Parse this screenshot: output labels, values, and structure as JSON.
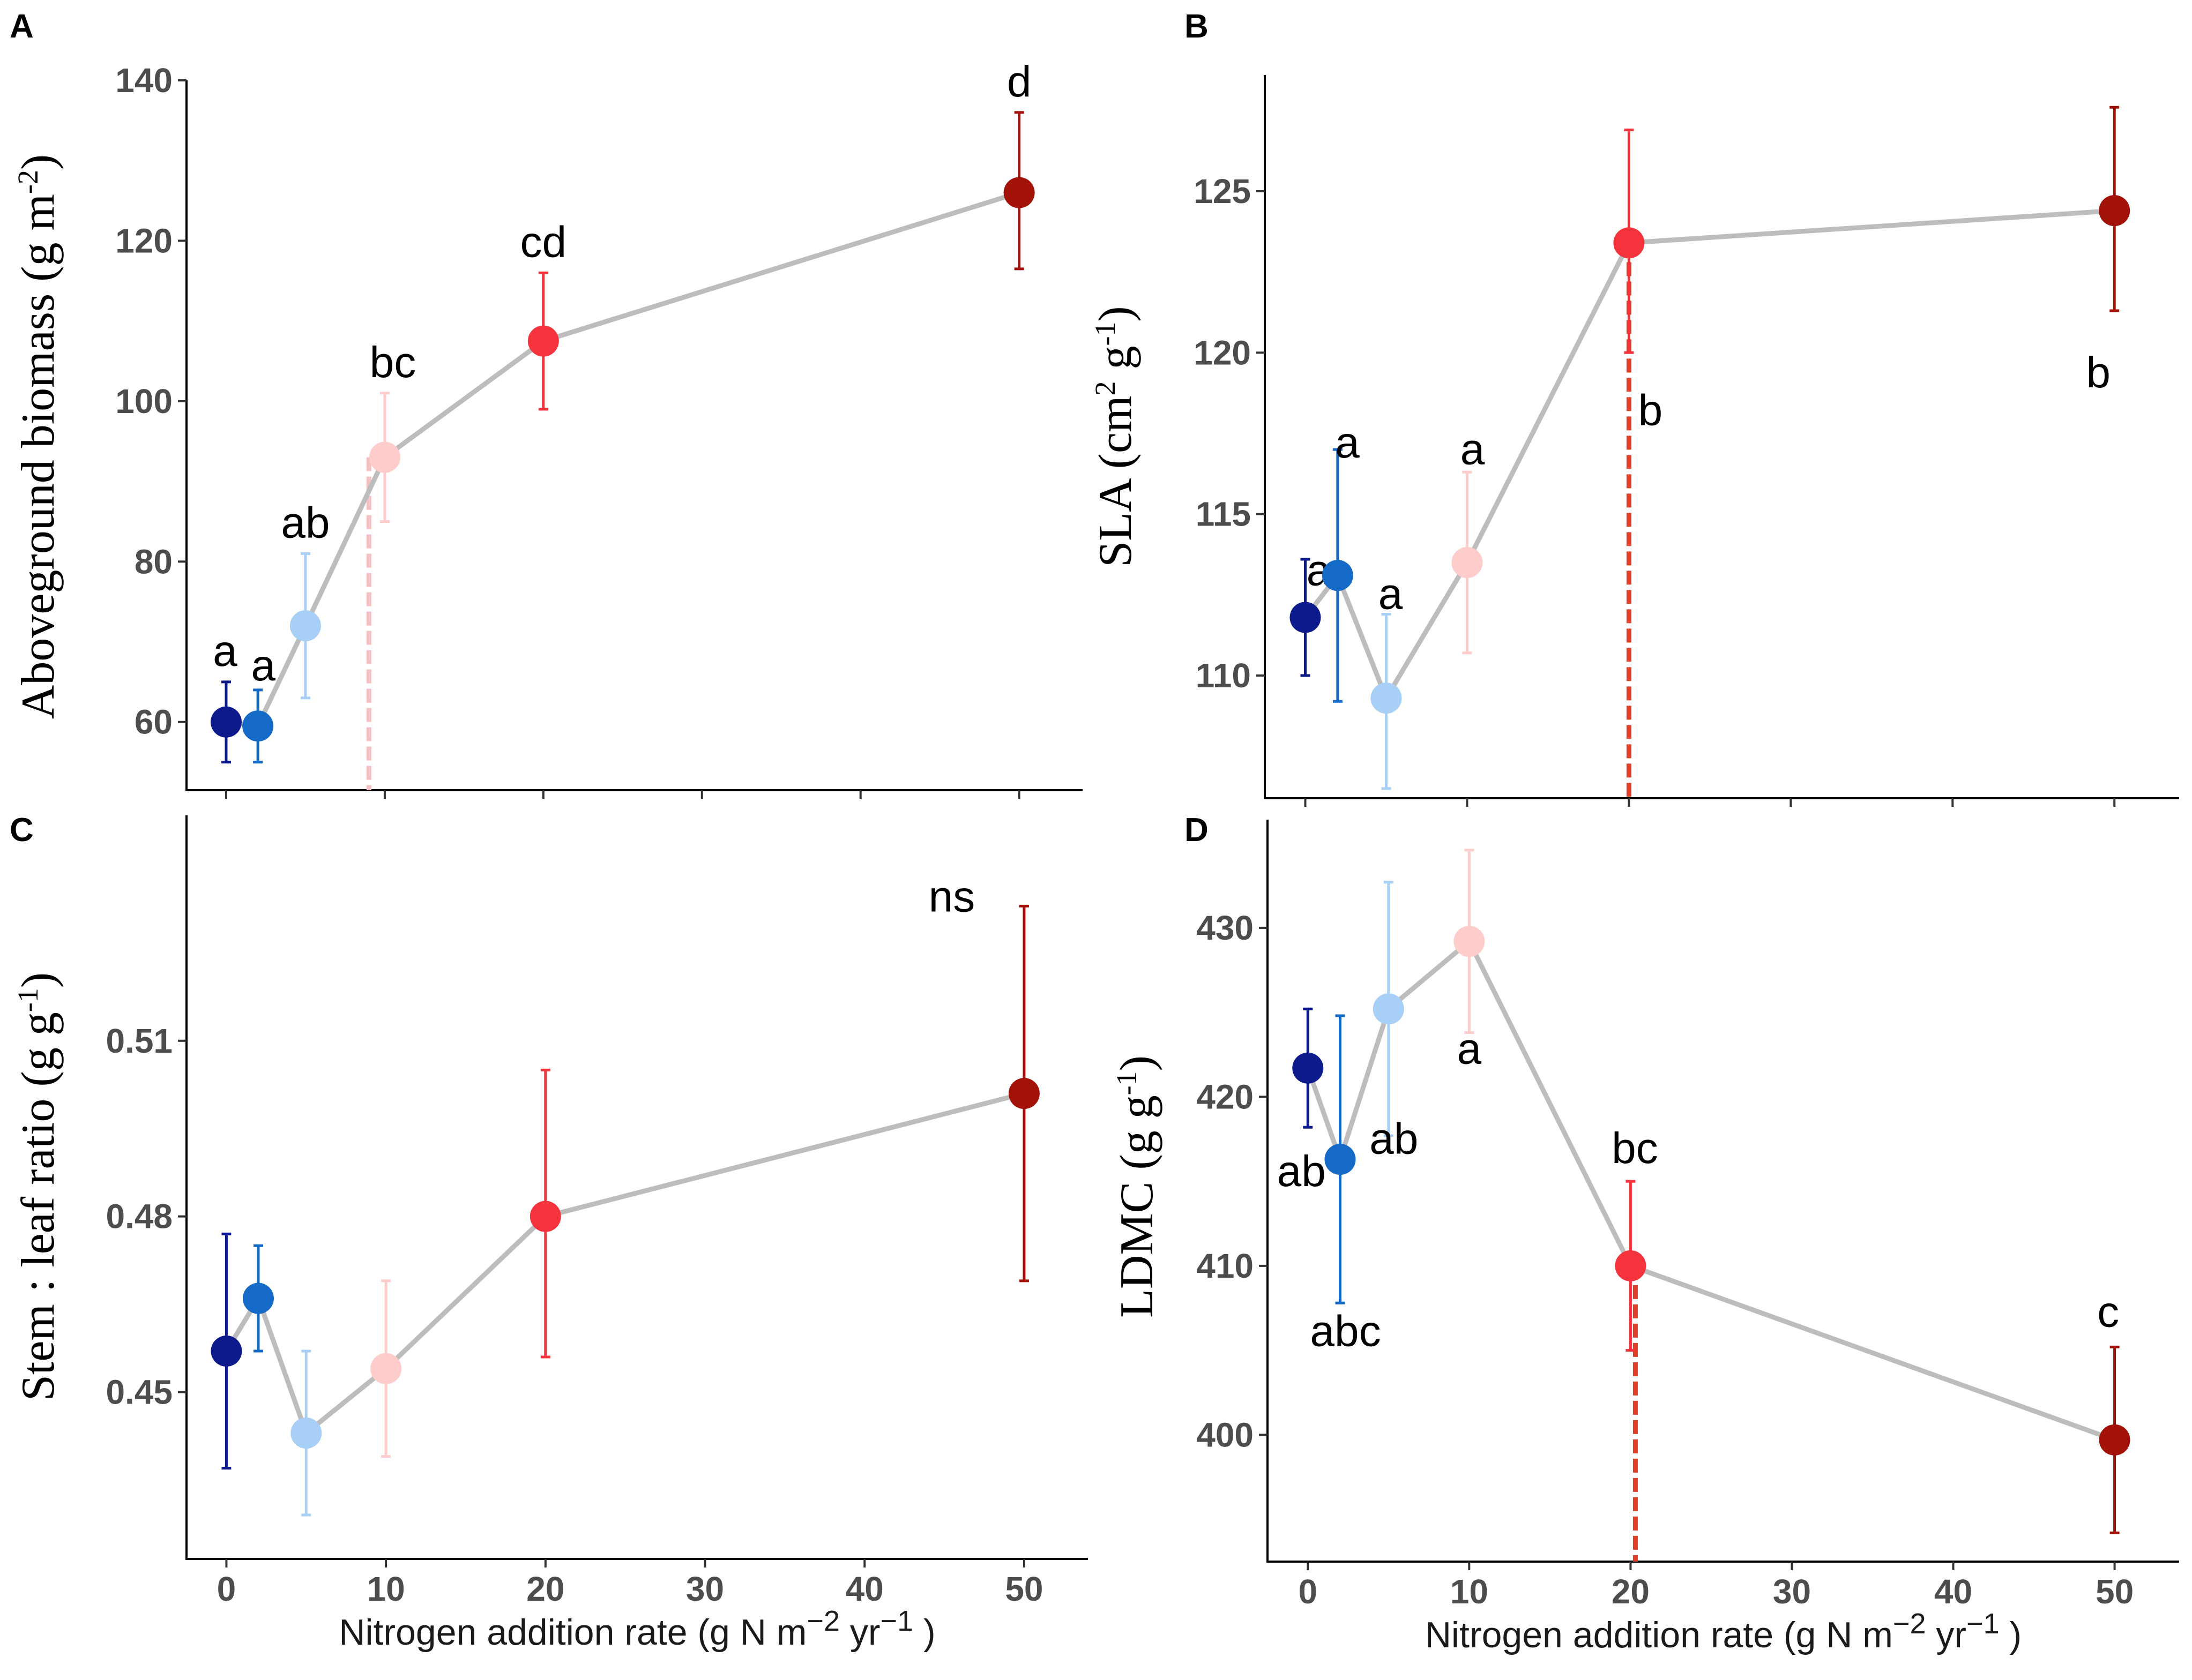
{
  "figure": {
    "x_axis_label": "Nitrogen addition rate (g N m",
    "x_axis_label_sup1": "−2",
    "x_axis_label_mid": "  yr",
    "x_axis_label_sup2": "−1",
    "x_axis_label_end": " )",
    "rates": [
      0,
      2,
      5,
      10,
      20,
      50
    ],
    "treatment_colors": [
      "#0d1a8c",
      "#1569c7",
      "#a8cff5",
      "#ffcccc",
      "#f5333d",
      "#a31208"
    ],
    "trend_color": "#bdbdbd"
  },
  "chart_data": [
    {
      "panel": "A",
      "type": "scatter",
      "ylabel": "Aboveground biomass (g m",
      "ylabel_sup": "-2",
      "ylabel_end": ")",
      "x": [
        0,
        2,
        5,
        10,
        20,
        50
      ],
      "y": [
        60,
        59.5,
        72,
        93,
        107.5,
        126
      ],
      "err_low": [
        55,
        55,
        63,
        85,
        99,
        116.5
      ],
      "err_high": [
        65,
        64,
        81,
        101,
        116,
        136
      ],
      "labels": [
        "a",
        "a",
        "ab",
        "bc",
        "cd",
        "d"
      ],
      "label_pos": [
        "above",
        "above",
        "above",
        "above",
        "above",
        "above"
      ],
      "yticks": [
        60,
        80,
        100,
        120,
        140
      ],
      "ylim": [
        51.5,
        140
      ],
      "xlim": [
        -2.5,
        54
      ],
      "show_x_tick_labels": false,
      "threshold": {
        "x": 9,
        "color": "#f4c2c2"
      }
    },
    {
      "panel": "B",
      "type": "scatter",
      "ylabel": "SLA (cm",
      "ylabel_sup": "2",
      "ylabel_mid": " g",
      "ylabel_sup2": "-1",
      "ylabel_end": ")",
      "x": [
        0,
        2,
        5,
        10,
        20,
        50
      ],
      "y": [
        111.8,
        113.1,
        109.3,
        113.5,
        123.4,
        124.4
      ],
      "err_low": [
        110,
        109.2,
        106.5,
        110.7,
        120,
        121.3
      ],
      "err_high": [
        113.6,
        117,
        111.9,
        116.3,
        126.9,
        127.6
      ],
      "labels": [
        "a",
        "a",
        "a",
        "a",
        "b",
        "b"
      ],
      "label_pos": [
        "above-left",
        "above-right",
        "above",
        "above",
        "below-right",
        "below"
      ],
      "yticks": [
        110,
        115,
        120,
        125
      ],
      "ylim": [
        106.2,
        128.6
      ],
      "xlim": [
        -2.5,
        54
      ],
      "show_x_tick_labels": false,
      "threshold": {
        "x": 20,
        "color": "#e0402a"
      }
    },
    {
      "panel": "C",
      "type": "scatter",
      "ylabel": "Stem : leaf ratio (g g",
      "ylabel_sup": "-1",
      "ylabel_end": ")",
      "x": [
        0,
        2,
        5,
        10,
        20,
        50
      ],
      "y": [
        0.457,
        0.466,
        0.443,
        0.454,
        0.48,
        0.501
      ],
      "err_low": [
        0.437,
        0.457,
        0.429,
        0.439,
        0.456,
        0.469
      ],
      "err_high": [
        0.477,
        0.475,
        0.457,
        0.469,
        0.505,
        0.533
      ],
      "labels": [
        "",
        "",
        "",
        "",
        "",
        "ns"
      ],
      "label_pos": [
        "above",
        "above",
        "above",
        "above",
        "above",
        "top-left"
      ],
      "yticks": [
        0.45,
        0.48,
        0.51
      ],
      "ytick_labels": [
        "0.45",
        "0.48",
        "0.51"
      ],
      "ylim": [
        0.4215,
        0.5485
      ],
      "xlim": [
        -2.5,
        54
      ],
      "show_x_tick_labels": true
    },
    {
      "panel": "D",
      "type": "scatter",
      "ylabel": "LDMC (g g",
      "ylabel_sup": "-1",
      "ylabel_end": ")",
      "x": [
        0,
        2,
        5,
        10,
        20,
        50
      ],
      "y": [
        421.7,
        416.3,
        425.2,
        429.2,
        410,
        399.7
      ],
      "err_low": [
        418.2,
        407.8,
        417.7,
        423.8,
        405,
        394.2
      ],
      "err_high": [
        425.2,
        424.8,
        432.7,
        434.6,
        415,
        405.2
      ],
      "labels": [
        "ab",
        "abc",
        "ab",
        "a",
        "bc",
        "c"
      ],
      "label_pos": [
        "below",
        "below",
        "below",
        "below",
        "above",
        "above"
      ],
      "yticks": [
        400,
        410,
        420,
        430
      ],
      "ylim": [
        392.5,
        436.4
      ],
      "xlim": [
        -2.5,
        54
      ],
      "show_x_tick_labels": true,
      "threshold": {
        "x": 20.3,
        "color": "#e0402a"
      }
    }
  ]
}
